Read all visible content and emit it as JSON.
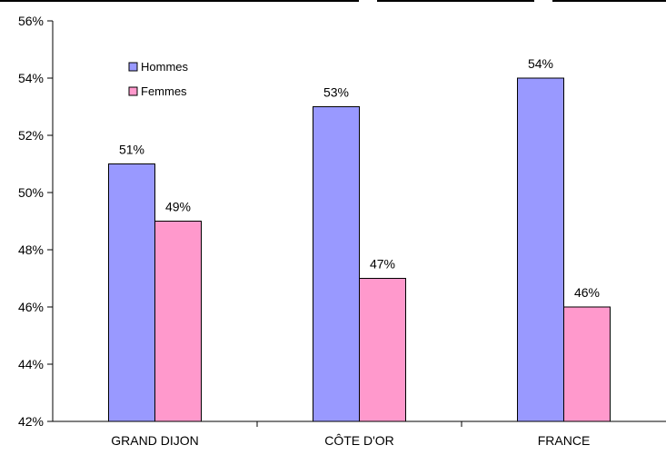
{
  "chart_data": {
    "type": "bar",
    "categories": [
      "GRAND DIJON",
      "CÔTE D'OR",
      "FRANCE"
    ],
    "series": [
      {
        "name": "Hommes",
        "values": [
          51,
          53,
          54
        ],
        "labels": [
          "51%",
          "53%",
          "54%"
        ],
        "color": "#9999FF"
      },
      {
        "name": "Femmes",
        "values": [
          49,
          47,
          46
        ],
        "labels": [
          "49%",
          "47%",
          "46%"
        ],
        "color": "#FF99CC"
      }
    ],
    "yticks": [
      42,
      44,
      46,
      48,
      50,
      52,
      54,
      56
    ],
    "ytick_labels": [
      "42%",
      "44%",
      "46%",
      "48%",
      "50%",
      "52%",
      "54%",
      "56%"
    ],
    "ylim": [
      42,
      56
    ],
    "grid": false,
    "legend_position": "top-left",
    "title": "",
    "xlabel": "",
    "ylabel": ""
  }
}
